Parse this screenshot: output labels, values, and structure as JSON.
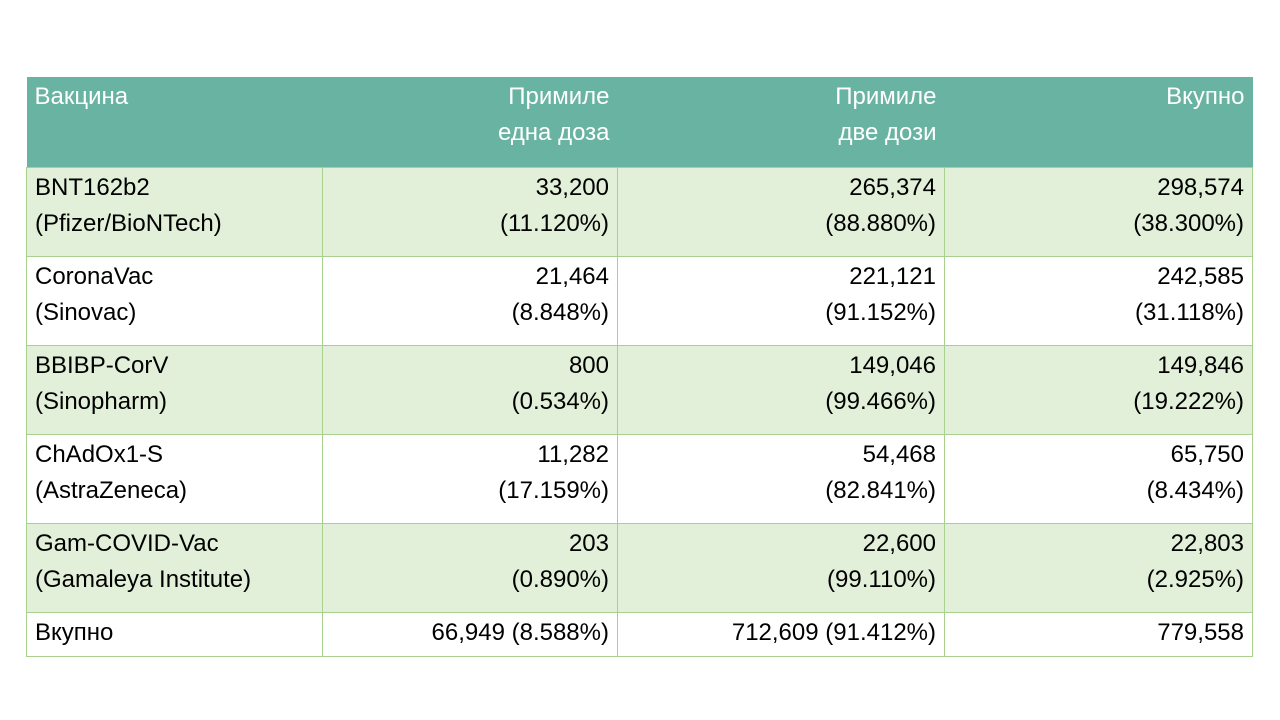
{
  "table": {
    "headers": [
      {
        "line1": "Вакцина",
        "line2": ""
      },
      {
        "line1": "Примиле",
        "line2": "една доза"
      },
      {
        "line1": "Примиле",
        "line2": "две дози"
      },
      {
        "line1": "Вкупно",
        "line2": ""
      }
    ],
    "rows": [
      {
        "vaccine": "BNT162b2",
        "producer": "(Pfizer/BioNTech)",
        "one_dose": "33,200",
        "one_dose_pct": "(11.120%)",
        "two_doses": "265,374",
        "two_doses_pct": "(88.880%)",
        "total": "298,574",
        "total_pct": "(38.300%)"
      },
      {
        "vaccine": "CoronaVac",
        "producer": "(Sinovac)",
        "one_dose": "21,464",
        "one_dose_pct": "(8.848%)",
        "two_doses": "221,121",
        "two_doses_pct": "(91.152%)",
        "total": "242,585",
        "total_pct": "(31.118%)"
      },
      {
        "vaccine": "BBIBP-CorV",
        "producer": "(Sinopharm)",
        "one_dose": "800",
        "one_dose_pct": "(0.534%)",
        "two_doses": "149,046",
        "two_doses_pct": "(99.466%)",
        "total": "149,846",
        "total_pct": "(19.222%)"
      },
      {
        "vaccine": "ChAdOx1-S",
        "producer": "(AstraZeneca)",
        "one_dose": "11,282",
        "one_dose_pct": "(17.159%)",
        "two_doses": "54,468",
        "two_doses_pct": "(82.841%)",
        "total": "65,750",
        "total_pct": "(8.434%)"
      },
      {
        "vaccine": "Gam-COVID-Vac",
        "producer": "(Gamaleya Institute)",
        "one_dose": "203",
        "one_dose_pct": "(0.890%)",
        "two_doses": "22,600",
        "two_doses_pct": "(99.110%)",
        "total": "22,803",
        "total_pct": "(2.925%)"
      }
    ],
    "total_row": {
      "label": "Вкупно",
      "one_dose": "66,949 (8.588%)",
      "two_doses": "712,609 (91.412%)",
      "total": "779,558"
    }
  },
  "colors": {
    "header_bg": "#69b3a2",
    "header_text": "#ffffff",
    "row_shade": "#e2efd9",
    "border": "#a9d18e"
  }
}
